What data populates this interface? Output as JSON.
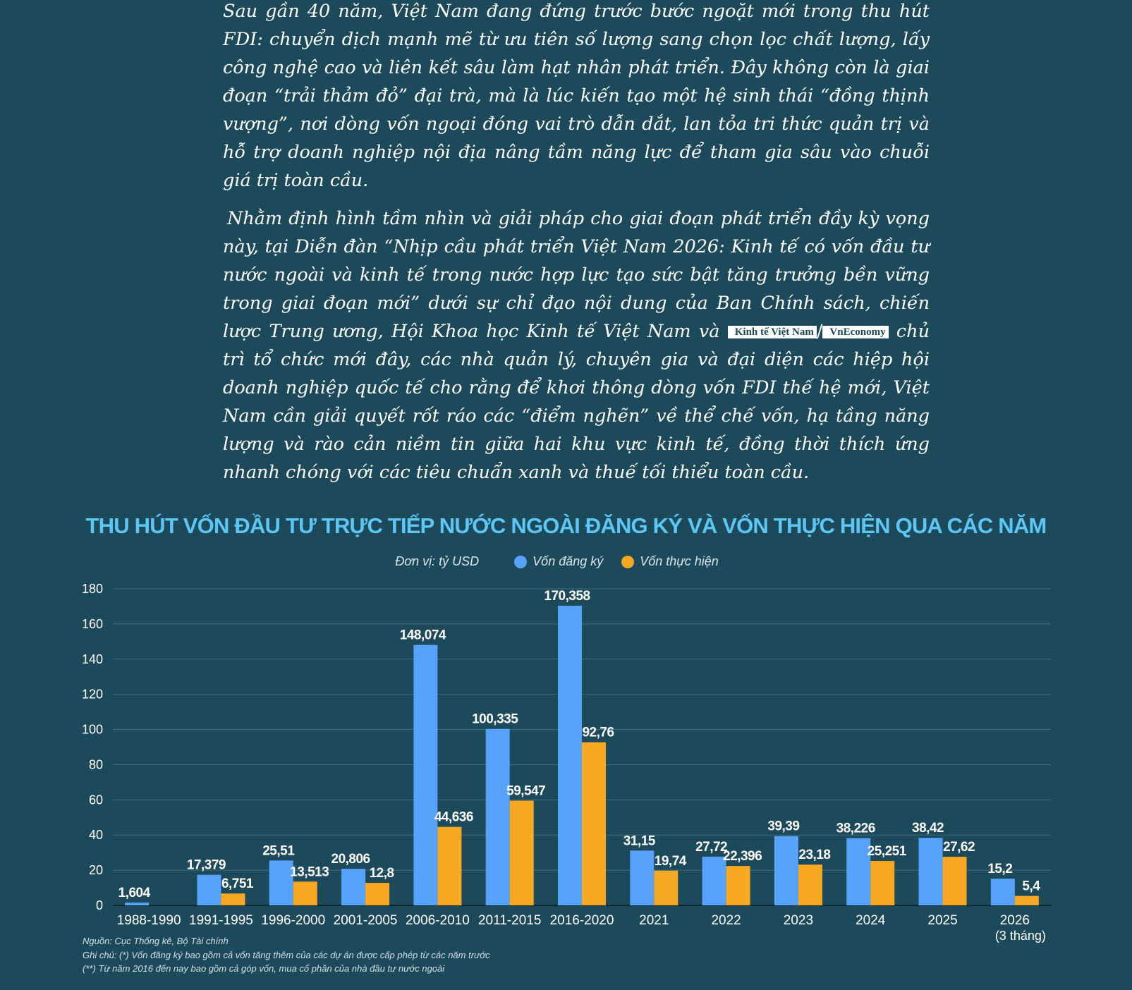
{
  "article": {
    "paragraph1": "Sau gần 40 năm, Việt Nam đang đứng trước bước ngoặt mới trong thu hút FDI: chuyển dịch mạnh mẽ từ ưu tiên số lượng sang chọn lọc chất lượng, lấy công nghệ cao và liên kết sâu làm hạt nhân phát triển. Đây không còn là giai đoạn “trải thảm đỏ” đại trà, mà là lúc kiến tạo một hệ sinh thái “đồng thịnh vượng”, nơi dòng vốn ngoại đóng vai trò dẫn dắt, lan tỏa tri thức quản trị và hỗ trợ doanh nghiệp nội địa nâng tầm năng lực để tham gia sâu vào chuỗi giá trị toàn cầu.",
    "paragraph2_before": "Nhằm định hình tầm nhìn và giải pháp cho giai đoạn phát triển đầy kỳ vọng này, tại Diễn đàn “Nhịp cầu phát triển Việt Nam 2026: Kinh tế có vốn đầu tư nước ngoài và kinh tế trong nước hợp lực tạo sức bật tăng trưởng bền vững trong giai đoạn mới” dưới sự chỉ đạo nội dung của Ban Chính sách, chiến lược Trung ương, Hội Khoa học Kinh tế Việt Nam và",
    "logo1": "Kinh tế Việt Nam",
    "separator": "/",
    "logo2": "VnEconomy",
    "paragraph2_after": "chủ trì tổ chức mới đây, các nhà quản lý, chuyên gia và đại diện các hiệp hội doanh nghiệp quốc tế cho rằng để khơi thông dòng vốn FDI thế hệ mới, Việt Nam cần giải quyết rốt ráo các “điểm nghẽn” về thể chế vốn, hạ tầng năng lượng và rào cản niềm tin giữa hai khu vực kinh tế, đồng thời thích ứng nhanh chóng với các tiêu chuẩn xanh và thuế tối thiểu toàn cầu."
  },
  "colors": {
    "background": "#1d4a5b",
    "title": "#5cc6f5",
    "registered": "#57a3fb",
    "implemented": "#f7a823",
    "grid": "#3f6d7d"
  },
  "chart_data": {
    "type": "bar",
    "title": "THU HÚT VỐN ĐẦU TƯ TRỰC TIẾP NƯỚC NGOÀI ĐĂNG KÝ VÀ VỐN THỰC HIỆN QUA CÁC NĂM",
    "unit": "Đơn vị: tỷ USD",
    "categories": [
      "1988-1990",
      "1991-1995",
      "1996-2000",
      "2001-2005",
      "2006-2010",
      "2011-2015",
      "2016-2020",
      "2021",
      "2022",
      "2023",
      "2024",
      "2025",
      "2026"
    ],
    "category_sublabels": [
      "",
      "",
      "",
      "",
      "",
      "",
      "",
      "",
      "",
      "",
      "",
      "",
      "(3 tháng)"
    ],
    "series": [
      {
        "name": "Vốn đăng ký",
        "color": "#57a3fb",
        "values": [
          1.604,
          17.379,
          25.51,
          20.806,
          148.074,
          100.335,
          170.358,
          31.15,
          27.72,
          39.39,
          38.226,
          38.42,
          15.2
        ],
        "labels": [
          "1,604",
          "17,379",
          "25,51",
          "20,806",
          "148,074",
          "100,335",
          "170,358",
          "31,15",
          "27,72",
          "39,39",
          "38,226",
          "38,42",
          "15,2"
        ]
      },
      {
        "name": "Vốn thực hiện",
        "color": "#f7a823",
        "values": [
          null,
          6.751,
          13.513,
          12.8,
          44.636,
          59.547,
          92.76,
          19.74,
          22.396,
          23.18,
          25.251,
          27.62,
          5.4
        ],
        "labels": [
          "",
          "6,751",
          "13,513",
          "12,8",
          "44,636",
          "59,547",
          "92,76",
          "19,74",
          "22,396",
          "23,18",
          "25,251",
          "27,62",
          "5,4"
        ]
      }
    ],
    "yticks": [
      0,
      20,
      40,
      60,
      80,
      100,
      120,
      140,
      160,
      180
    ],
    "ylim": [
      0,
      180
    ],
    "grid": true,
    "legend": "top-center"
  },
  "notes": {
    "source": "Nguồn: Cục Thống kê, Bộ Tài chính",
    "note1": "Ghi chú: (*) Vốn đăng ký bao gồm cả vốn tăng thêm của các dự án được cấp phép từ các năm trước",
    "note2": "(**) Từ năm 2016 đến nay bao gồm cả góp vốn, mua cổ phần của nhà đầu tư nước ngoài"
  }
}
